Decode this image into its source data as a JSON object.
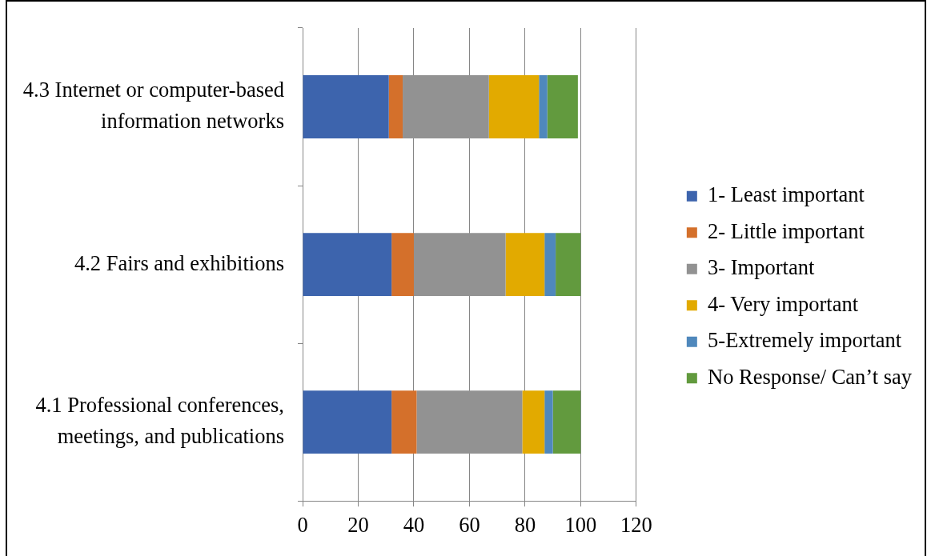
{
  "chart_data": {
    "type": "bar",
    "orientation": "horizontal",
    "stacked": true,
    "categories": [
      "4.3 Internet or computer-based information networks",
      "4.2 Fairs and exhibitions",
      "4.1 Professional conferences, meetings, and publications"
    ],
    "series": [
      {
        "name": "1- Least important",
        "color": "#3d64ad",
        "values": [
          31,
          32,
          32
        ]
      },
      {
        "name": "2- Little important",
        "color": "#d4702b",
        "values": [
          5,
          8,
          9
        ]
      },
      {
        "name": "3- Important",
        "color": "#929292",
        "values": [
          31,
          33,
          38
        ]
      },
      {
        "name": "4- Very important",
        "color": "#e2aa00",
        "values": [
          18,
          14,
          8
        ]
      },
      {
        "name": "5-Extremely important",
        "color": "#4f88bc",
        "values": [
          3,
          4,
          3
        ]
      },
      {
        "name": "No Response/ Can’t say",
        "color": "#629a3e",
        "values": [
          11,
          9,
          10
        ]
      }
    ],
    "xlim": [
      0,
      120
    ],
    "xticks": [
      0,
      20,
      40,
      60,
      80,
      100,
      120
    ],
    "grid": "x",
    "legend": "right"
  }
}
